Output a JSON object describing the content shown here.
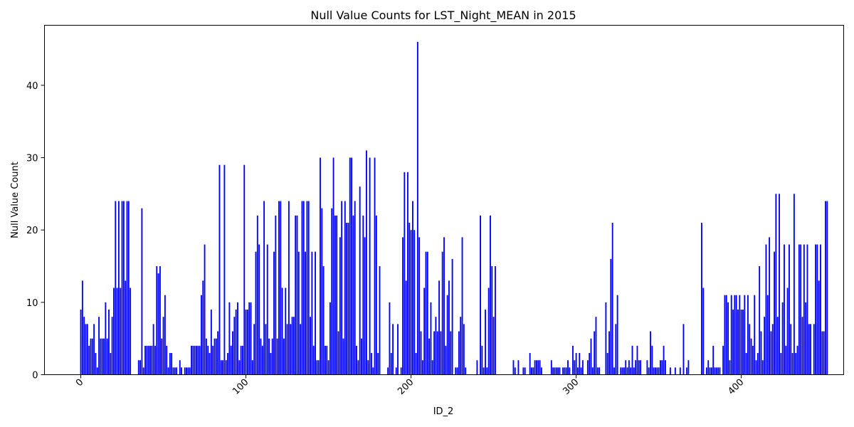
{
  "chart_data": {
    "type": "bar",
    "title": "Null Value Counts for LST_Night_MEAN in 2015",
    "xlabel": "ID_2",
    "ylabel": "Null Value Count",
    "x_ticks": [
      0,
      100,
      200,
      300,
      400
    ],
    "y_ticks": [
      0,
      10,
      20,
      30,
      40
    ],
    "xlim": [
      -22,
      462
    ],
    "ylim": [
      0,
      48.3
    ],
    "bar_color": "#0000ff",
    "grid": false,
    "values": [
      9,
      13,
      8,
      7,
      7,
      4,
      5,
      5,
      7,
      3,
      1,
      8,
      5,
      5,
      5,
      10,
      5,
      9,
      3,
      8,
      12,
      24,
      12,
      24,
      12,
      24,
      24,
      13,
      24,
      24,
      12,
      0,
      0,
      0,
      0,
      2,
      2,
      23,
      1,
      4,
      4,
      4,
      4,
      4,
      7,
      4,
      15,
      14,
      15,
      5,
      8,
      11,
      4,
      1,
      3,
      3,
      1,
      1,
      1,
      0,
      2,
      1,
      0,
      1,
      1,
      1,
      1,
      4,
      4,
      4,
      4,
      4,
      4,
      11,
      13,
      18,
      5,
      4,
      3,
      9,
      4,
      5,
      5,
      6,
      29,
      2,
      2,
      29,
      2,
      3,
      10,
      4,
      6,
      8,
      9,
      10,
      2,
      4,
      4,
      29,
      9,
      9,
      10,
      10,
      2,
      7,
      17,
      22,
      18,
      5,
      4,
      24,
      7,
      18,
      5,
      3,
      5,
      17,
      22,
      5,
      24,
      24,
      12,
      5,
      12,
      7,
      24,
      7,
      8,
      8,
      22,
      22,
      17,
      7,
      24,
      24,
      17,
      24,
      24,
      8,
      17,
      4,
      17,
      2,
      2,
      30,
      23,
      15,
      4,
      4,
      2,
      10,
      23,
      30,
      22,
      22,
      6,
      19,
      24,
      5,
      24,
      21,
      21,
      30,
      30,
      22,
      24,
      4,
      2,
      26,
      5,
      22,
      19,
      31,
      2,
      30,
      3,
      1,
      30,
      22,
      3,
      15,
      0,
      0,
      0,
      0,
      1,
      10,
      3,
      7,
      0,
      1,
      7,
      0,
      1,
      19,
      28,
      13,
      28,
      21,
      20,
      24,
      20,
      3,
      46,
      19,
      6,
      2,
      12,
      17,
      17,
      5,
      10,
      2,
      6,
      8,
      6,
      13,
      6,
      17,
      19,
      4,
      11,
      13,
      6,
      16,
      0,
      1,
      1,
      6,
      8,
      19,
      7,
      1,
      0,
      0,
      0,
      0,
      0,
      0,
      2,
      0,
      22,
      4,
      1,
      9,
      1,
      12,
      22,
      15,
      8,
      15,
      0,
      0,
      0,
      0,
      0,
      0,
      0,
      0,
      0,
      0,
      2,
      1,
      0,
      2,
      0,
      0,
      1,
      1,
      0,
      0,
      3,
      1,
      1,
      2,
      2,
      2,
      2,
      1,
      0,
      0,
      0,
      0,
      0,
      2,
      1,
      1,
      1,
      1,
      1,
      0,
      1,
      1,
      1,
      2,
      1,
      0,
      4,
      2,
      3,
      1,
      3,
      1,
      2,
      0,
      0,
      2,
      3,
      5,
      1,
      6,
      8,
      1,
      1,
      0,
      0,
      0,
      10,
      3,
      6,
      16,
      21,
      1,
      7,
      11,
      0,
      1,
      1,
      1,
      2,
      1,
      2,
      1,
      4,
      1,
      2,
      4,
      2,
      2,
      0,
      0,
      0,
      2,
      1,
      6,
      4,
      1,
      1,
      1,
      1,
      2,
      2,
      4,
      2,
      0,
      0,
      1,
      0,
      0,
      1,
      0,
      0,
      1,
      0,
      7,
      0,
      1,
      2,
      0,
      0,
      0,
      0,
      0,
      0,
      0,
      21,
      12,
      0,
      1,
      2,
      1,
      1,
      4,
      1,
      1,
      1,
      1,
      0,
      4,
      11,
      11,
      10,
      2,
      11,
      9,
      11,
      11,
      9,
      11,
      9,
      9,
      11,
      3,
      11,
      7,
      5,
      4,
      11,
      2,
      3,
      15,
      6,
      2,
      8,
      18,
      11,
      19,
      6,
      7,
      17,
      25,
      8,
      25,
      3,
      10,
      18,
      4,
      12,
      18,
      7,
      3,
      25,
      3,
      4,
      18,
      18,
      8,
      18,
      10,
      18,
      7,
      7,
      0,
      7,
      18,
      18,
      13,
      18,
      6,
      6,
      24,
      24
    ]
  }
}
